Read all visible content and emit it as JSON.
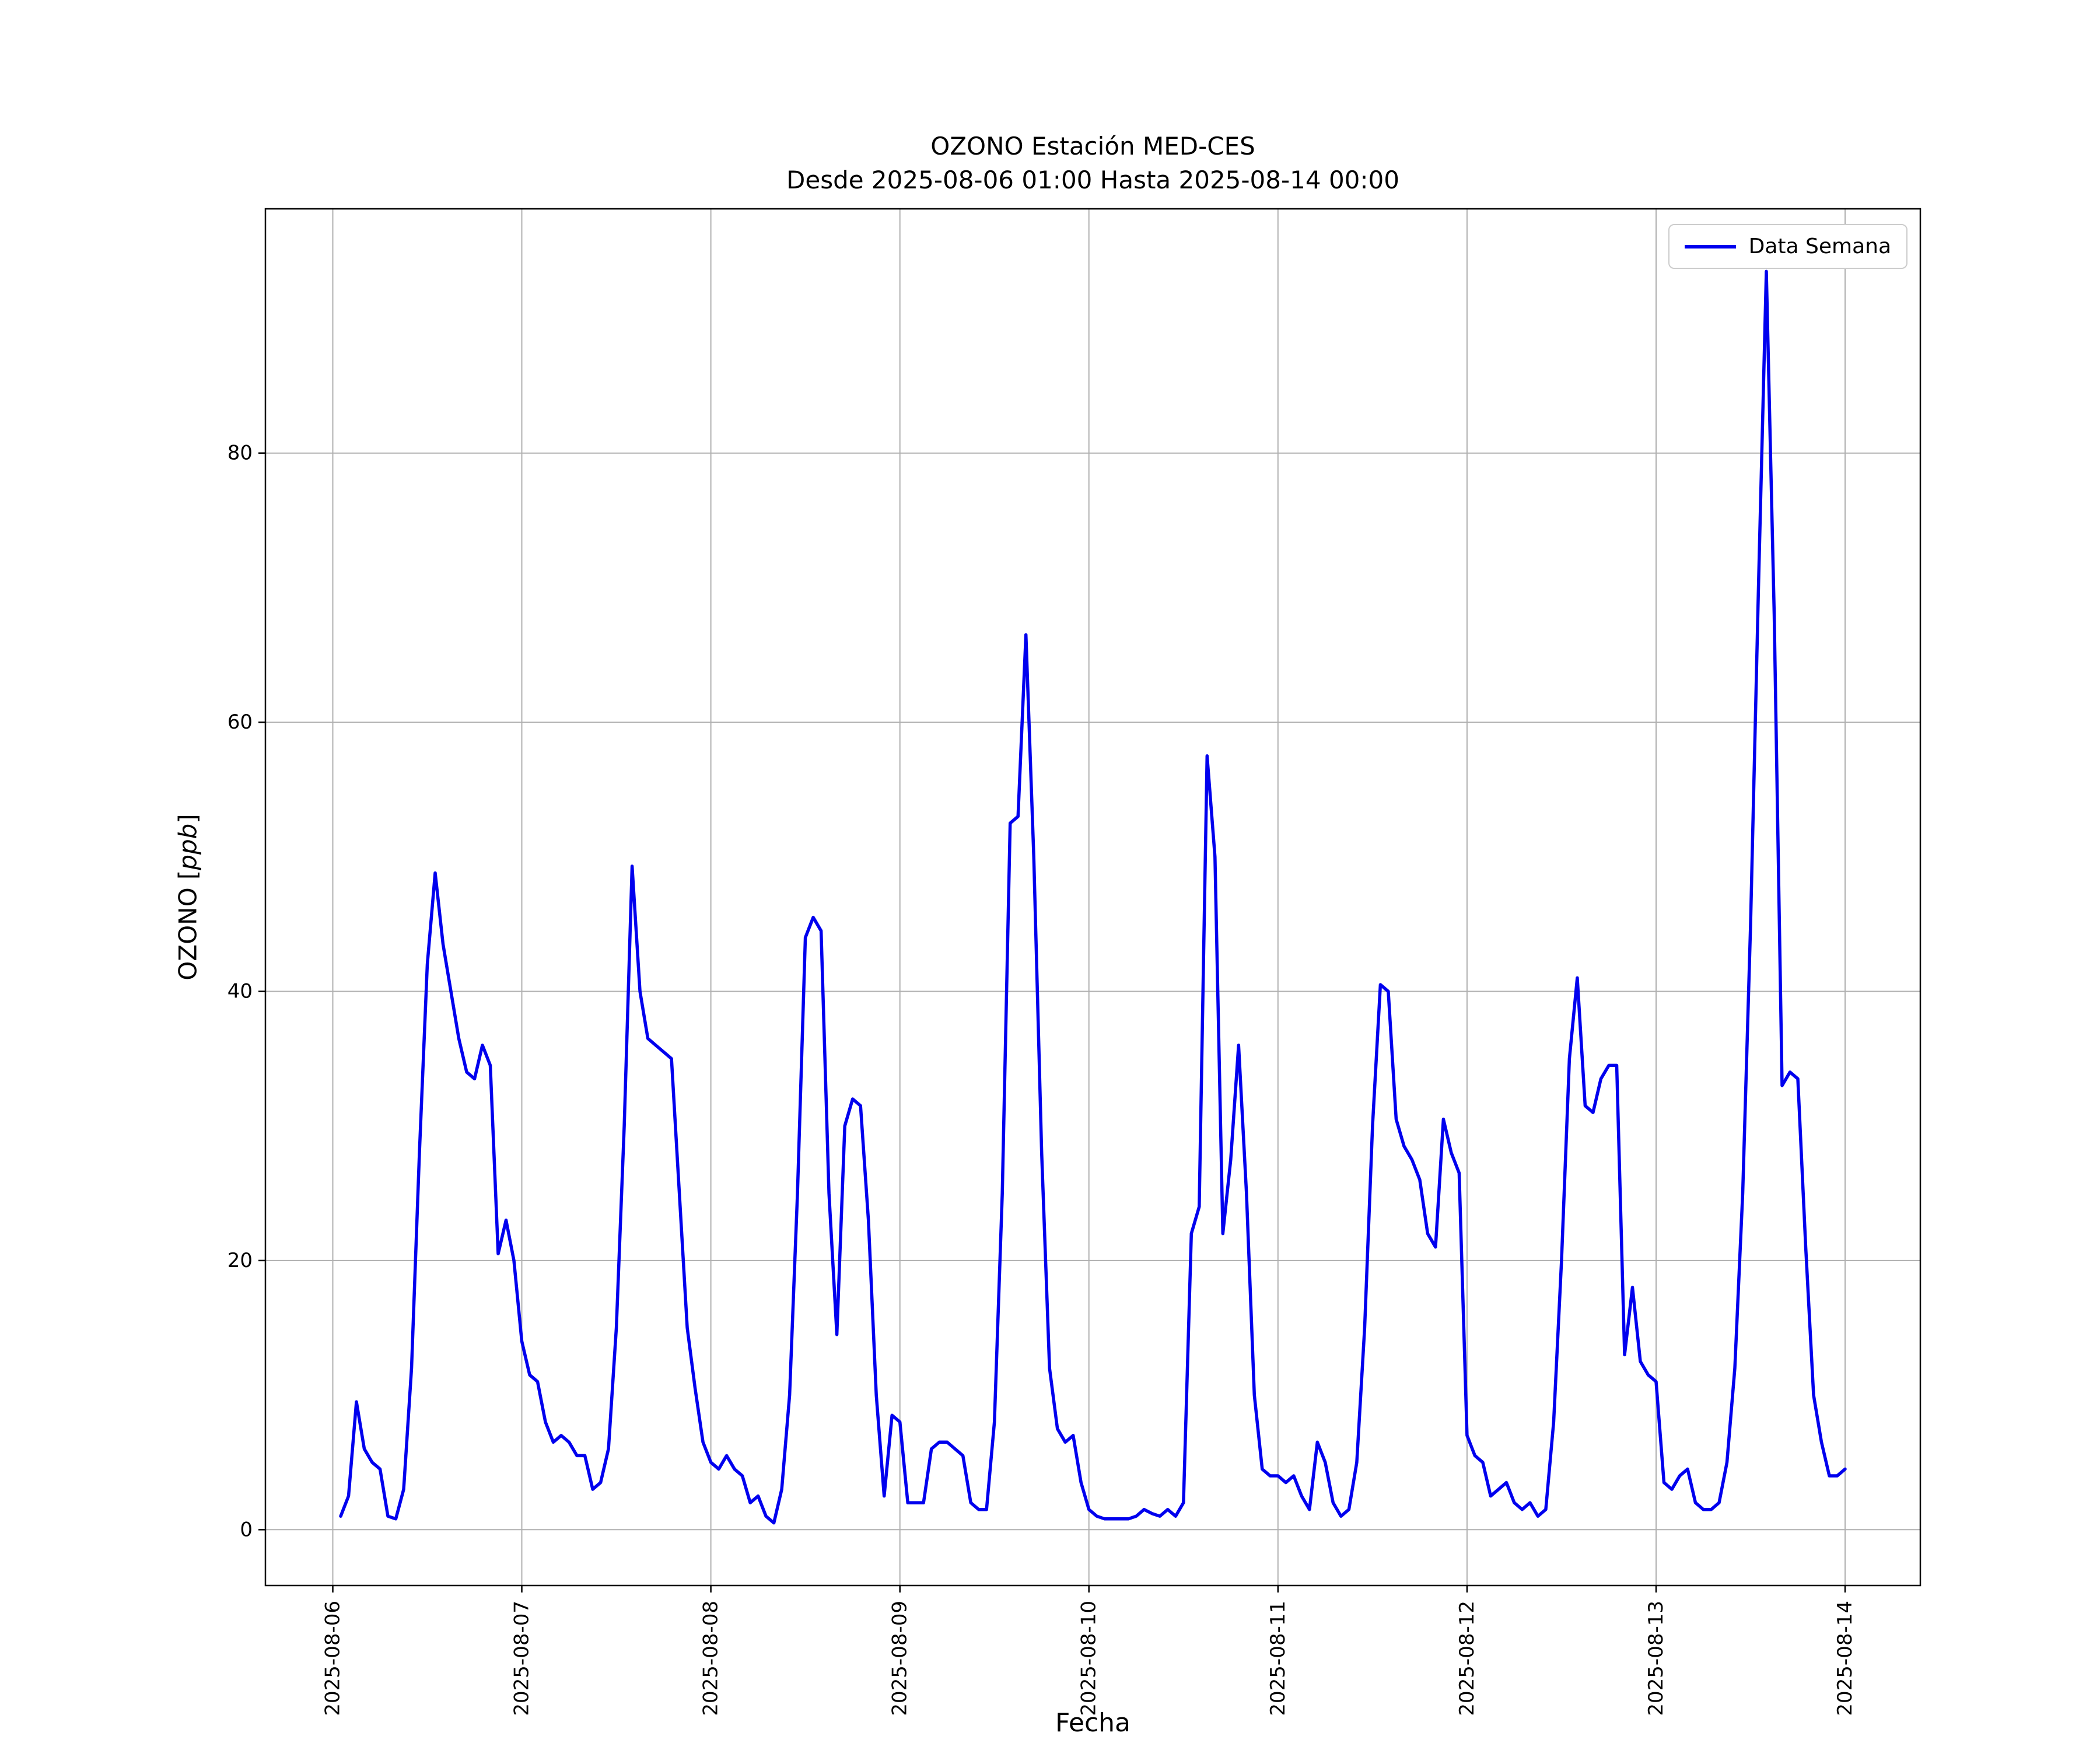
{
  "chart": {
    "title_line1": "OZONO Estación MED-CES",
    "title_line2": "Desde 2025-08-06 01:00 Hasta 2025-08-14 00:00",
    "xlabel": "Fecha",
    "ylabel_prefix": "OZONO [",
    "ylabel_italic": "ppb",
    "ylabel_suffix": "]",
    "legend_label": "Data Semana"
  },
  "chart_data": {
    "type": "line",
    "title": "OZONO Estación MED-CES\nDesde 2025-08-06 01:00 Hasta 2025-08-14 00:00",
    "xlabel": "Fecha",
    "ylabel": "OZONO [ppb]",
    "legend": [
      "Data Semana"
    ],
    "legend_position": "upper right",
    "grid": true,
    "line_color": "#0000ee",
    "grid_color": "#b0b0b0",
    "x_start": "2025-08-06 01:00",
    "x_end": "2025-08-14 00:00",
    "x_interval_hours": 1,
    "x_start_hour": 1,
    "xlim": [
      -8.55,
      201.55
    ],
    "ylim": [
      -4.15,
      98.15
    ],
    "y_ticks": [
      0,
      20,
      40,
      60,
      80
    ],
    "x_ticks": [
      {
        "hour": 0,
        "label": "2025-08-06"
      },
      {
        "hour": 24,
        "label": "2025-08-07"
      },
      {
        "hour": 48,
        "label": "2025-08-08"
      },
      {
        "hour": 72,
        "label": "2025-08-09"
      },
      {
        "hour": 96,
        "label": "2025-08-10"
      },
      {
        "hour": 120,
        "label": "2025-08-11"
      },
      {
        "hour": 144,
        "label": "2025-08-12"
      },
      {
        "hour": 168,
        "label": "2025-08-13"
      },
      {
        "hour": 192,
        "label": "2025-08-14"
      }
    ],
    "values": [
      1.0,
      2.5,
      9.5,
      6.0,
      5.0,
      4.5,
      1.0,
      0.8,
      3.0,
      12.0,
      28.0,
      42.0,
      48.8,
      43.5,
      40.0,
      36.5,
      34.0,
      33.5,
      36.0,
      34.5,
      20.5,
      23.0,
      20.0,
      14.0,
      11.5,
      11.0,
      8.0,
      6.5,
      7.0,
      6.5,
      5.5,
      5.5,
      3.0,
      3.5,
      6.0,
      15.0,
      30.0,
      49.3,
      40.0,
      36.5,
      36.0,
      35.5,
      35.0,
      25.0,
      15.0,
      10.5,
      6.5,
      5.0,
      4.5,
      5.5,
      4.5,
      4.0,
      2.0,
      2.5,
      1.0,
      0.5,
      3.0,
      10.0,
      25.0,
      44.0,
      45.5,
      44.5,
      25.0,
      14.5,
      30.0,
      32.0,
      31.5,
      23.0,
      10.0,
      2.5,
      8.5,
      8.0,
      2.0,
      2.0,
      2.0,
      6.0,
      6.5,
      6.5,
      6.0,
      5.5,
      2.0,
      1.5,
      1.5,
      8.0,
      25.0,
      52.5,
      53.0,
      66.5,
      50.0,
      28.0,
      12.0,
      7.5,
      6.5,
      7.0,
      3.5,
      1.5,
      1.0,
      0.8,
      0.8,
      0.8,
      0.8,
      1.0,
      1.5,
      1.2,
      1.0,
      1.5,
      1.0,
      2.0,
      22.0,
      24.0,
      57.5,
      50.0,
      22.0,
      27.5,
      36.0,
      25.0,
      10.0,
      4.5,
      4.0,
      4.0,
      3.5,
      4.0,
      2.5,
      1.5,
      6.5,
      5.0,
      2.0,
      1.0,
      1.5,
      5.0,
      15.0,
      30.0,
      40.5,
      40.0,
      30.5,
      28.5,
      27.5,
      26.0,
      22.0,
      21.0,
      30.5,
      28.0,
      26.5,
      7.0,
      5.5,
      5.0,
      2.5,
      3.0,
      3.5,
      2.0,
      1.5,
      2.0,
      1.0,
      1.5,
      8.0,
      20.0,
      35.0,
      41.0,
      31.5,
      31.0,
      33.5,
      34.5,
      34.5,
      13.0,
      18.0,
      12.5,
      11.5,
      11.0,
      3.5,
      3.0,
      4.0,
      4.5,
      2.0,
      1.5,
      1.5,
      2.0,
      5.0,
      12.0,
      25.0,
      45.0,
      70.0,
      93.5,
      68.0,
      33.0,
      34.0,
      33.5,
      21.0,
      10.0,
      6.5,
      4.0,
      4.0,
      4.5
    ]
  }
}
